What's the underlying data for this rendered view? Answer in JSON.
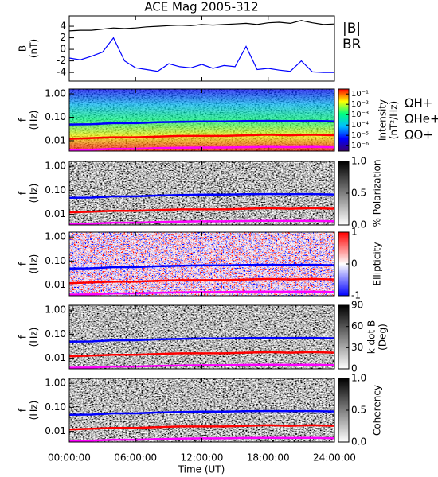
{
  "title": "ACE Mag 2005-312",
  "xaxis": {
    "label": "Time (UT)",
    "lim": [
      0,
      24
    ],
    "ticks": [
      {
        "value": 0,
        "label": "00:00:00"
      },
      {
        "value": 6,
        "label": "06:00:00"
      },
      {
        "value": 12,
        "label": "12:00:00"
      },
      {
        "value": 18,
        "label": "18:00:00"
      },
      {
        "value": 24,
        "label": "24:00:00"
      }
    ]
  },
  "chart_data": [
    {
      "type": "line",
      "ylabel": [
        "B",
        "(nT)"
      ],
      "ylim": [
        -5.5,
        5.8
      ],
      "yticks": [
        -4,
        -2,
        0,
        2,
        4
      ],
      "x": [
        0,
        1,
        2,
        3,
        4,
        5,
        6,
        7,
        8,
        9,
        10,
        11,
        12,
        13,
        14,
        15,
        16,
        17,
        18,
        19,
        20,
        21,
        22,
        23,
        24
      ],
      "series": [
        {
          "name": "|B|",
          "color": "#000000",
          "values": [
            3.2,
            3.3,
            3.3,
            3.5,
            3.7,
            3.6,
            3.7,
            3.9,
            4.0,
            4.1,
            4.2,
            4.1,
            4.3,
            4.2,
            4.3,
            4.4,
            4.5,
            4.3,
            4.6,
            4.7,
            4.5,
            5.0,
            4.6,
            4.3,
            4.4
          ]
        },
        {
          "name": "BR",
          "color": "#0000ff",
          "values": [
            -1.5,
            -1.8,
            -1.2,
            -0.5,
            2.0,
            -2.0,
            -3.2,
            -3.5,
            -3.8,
            -2.5,
            -3.0,
            -3.2,
            -2.6,
            -3.3,
            -2.8,
            -3.0,
            0.5,
            -3.5,
            -3.3,
            -3.6,
            -3.8,
            -2.0,
            -3.9,
            -4.0,
            -4.0
          ]
        }
      ]
    },
    {
      "type": "spectrogram",
      "ylabel": [
        "f",
        "(Hz)"
      ],
      "log": true,
      "ylim": [
        0.0036,
        1.6
      ],
      "yticks": [
        {
          "value": 1,
          "label": "1.00"
        },
        {
          "value": 0.1,
          "label": "0.10"
        },
        0.01
      ],
      "colorbar": {
        "label": [
          "Intensity",
          "(nT²/Hz)"
        ],
        "log": true,
        "lim": [
          3e-07,
          0.3
        ],
        "colors": [
          "#3b0070",
          "#0000ff",
          "#00c0ff",
          "#00ff80",
          "#ffff00",
          "#ff0000"
        ],
        "ticks": [
          {
            "value": 0.1,
            "label": "10⁻¹"
          },
          {
            "value": 0.01,
            "label": "10⁻²"
          },
          {
            "value": 0.001,
            "label": "10⁻³"
          },
          {
            "value": 0.0001,
            "label": "10⁻⁴"
          },
          {
            "value": 1e-05,
            "label": "10⁻⁵"
          },
          {
            "value": 1e-06,
            "label": "10⁻⁶"
          }
        ]
      },
      "x": [
        0,
        2,
        4,
        6,
        8,
        10,
        12,
        14,
        16,
        18,
        20,
        22,
        24
      ],
      "series": [
        {
          "name": "ΩH+",
          "color": "#0000ff",
          "values": [
            0.049,
            0.05,
            0.056,
            0.056,
            0.061,
            0.064,
            0.066,
            0.066,
            0.069,
            0.07,
            0.069,
            0.07,
            0.067
          ]
        },
        {
          "name": "ΩHe+",
          "color": "#ff0000",
          "values": [
            0.012,
            0.013,
            0.014,
            0.014,
            0.015,
            0.016,
            0.016,
            0.016,
            0.017,
            0.018,
            0.017,
            0.018,
            0.017
          ]
        },
        {
          "name": "ΩO+",
          "color": "#ff00ff",
          "values": [
            0.004,
            0.0041,
            0.0045,
            0.0045,
            0.0048,
            0.005,
            0.0051,
            0.0051,
            0.0053,
            0.0054,
            0.0053,
            0.0054,
            0.0052
          ]
        }
      ]
    },
    {
      "type": "spectrogram",
      "ylabel": [
        "f",
        "(Hz)"
      ],
      "log": true,
      "ylim": [
        0.0036,
        1.6
      ],
      "yticks": [
        {
          "value": 1,
          "label": "1.00"
        },
        {
          "value": 0.1,
          "label": "0.10"
        },
        0.01
      ],
      "colorbar": {
        "label": [
          "% Polarization"
        ],
        "lim": [
          0,
          1
        ],
        "colors": [
          "#ffffff",
          "#000000"
        ],
        "ticks": [
          {
            "value": 1,
            "label": "1.0"
          },
          0.5,
          {
            "value": 0,
            "label": "0.0"
          }
        ]
      }
    },
    {
      "type": "spectrogram",
      "ylabel": [
        "f",
        "(Hz)"
      ],
      "log": true,
      "ylim": [
        0.0036,
        1.6
      ],
      "yticks": [
        {
          "value": 1,
          "label": "1.00"
        },
        {
          "value": 0.1,
          "label": "0.10"
        },
        0.01
      ],
      "colorbar": {
        "label": [
          "Ellipticity"
        ],
        "lim": [
          -1,
          1
        ],
        "colors": [
          "#0000ff",
          "#ffffff",
          "#ff0000"
        ],
        "ticks": [
          1,
          0,
          -1
        ]
      }
    },
    {
      "type": "spectrogram",
      "ylabel": [
        "f",
        "(Hz)"
      ],
      "log": true,
      "ylim": [
        0.0036,
        1.6
      ],
      "yticks": [
        {
          "value": 1,
          "label": "1.00"
        },
        {
          "value": 0.1,
          "label": "0.10"
        },
        0.01
      ],
      "colorbar": {
        "label": [
          "k dot B",
          "(Deg)"
        ],
        "lim": [
          0,
          90
        ],
        "colors": [
          "#ffffff",
          "#000000"
        ],
        "ticks": [
          90,
          60,
          30,
          0
        ]
      }
    },
    {
      "type": "spectrogram",
      "ylabel": [
        "f",
        "(Hz)"
      ],
      "log": true,
      "ylim": [
        0.0036,
        1.6
      ],
      "yticks": [
        {
          "value": 1,
          "label": "1.00"
        },
        {
          "value": 0.1,
          "label": "0.10"
        },
        0.01
      ],
      "colorbar": {
        "label": [
          "Coherency"
        ],
        "lim": [
          0,
          1
        ],
        "colors": [
          "#ffffff",
          "#000000"
        ],
        "ticks": [
          {
            "value": 1,
            "label": "1.0"
          },
          0.5,
          {
            "value": 0,
            "label": "0.0"
          }
        ]
      }
    }
  ]
}
